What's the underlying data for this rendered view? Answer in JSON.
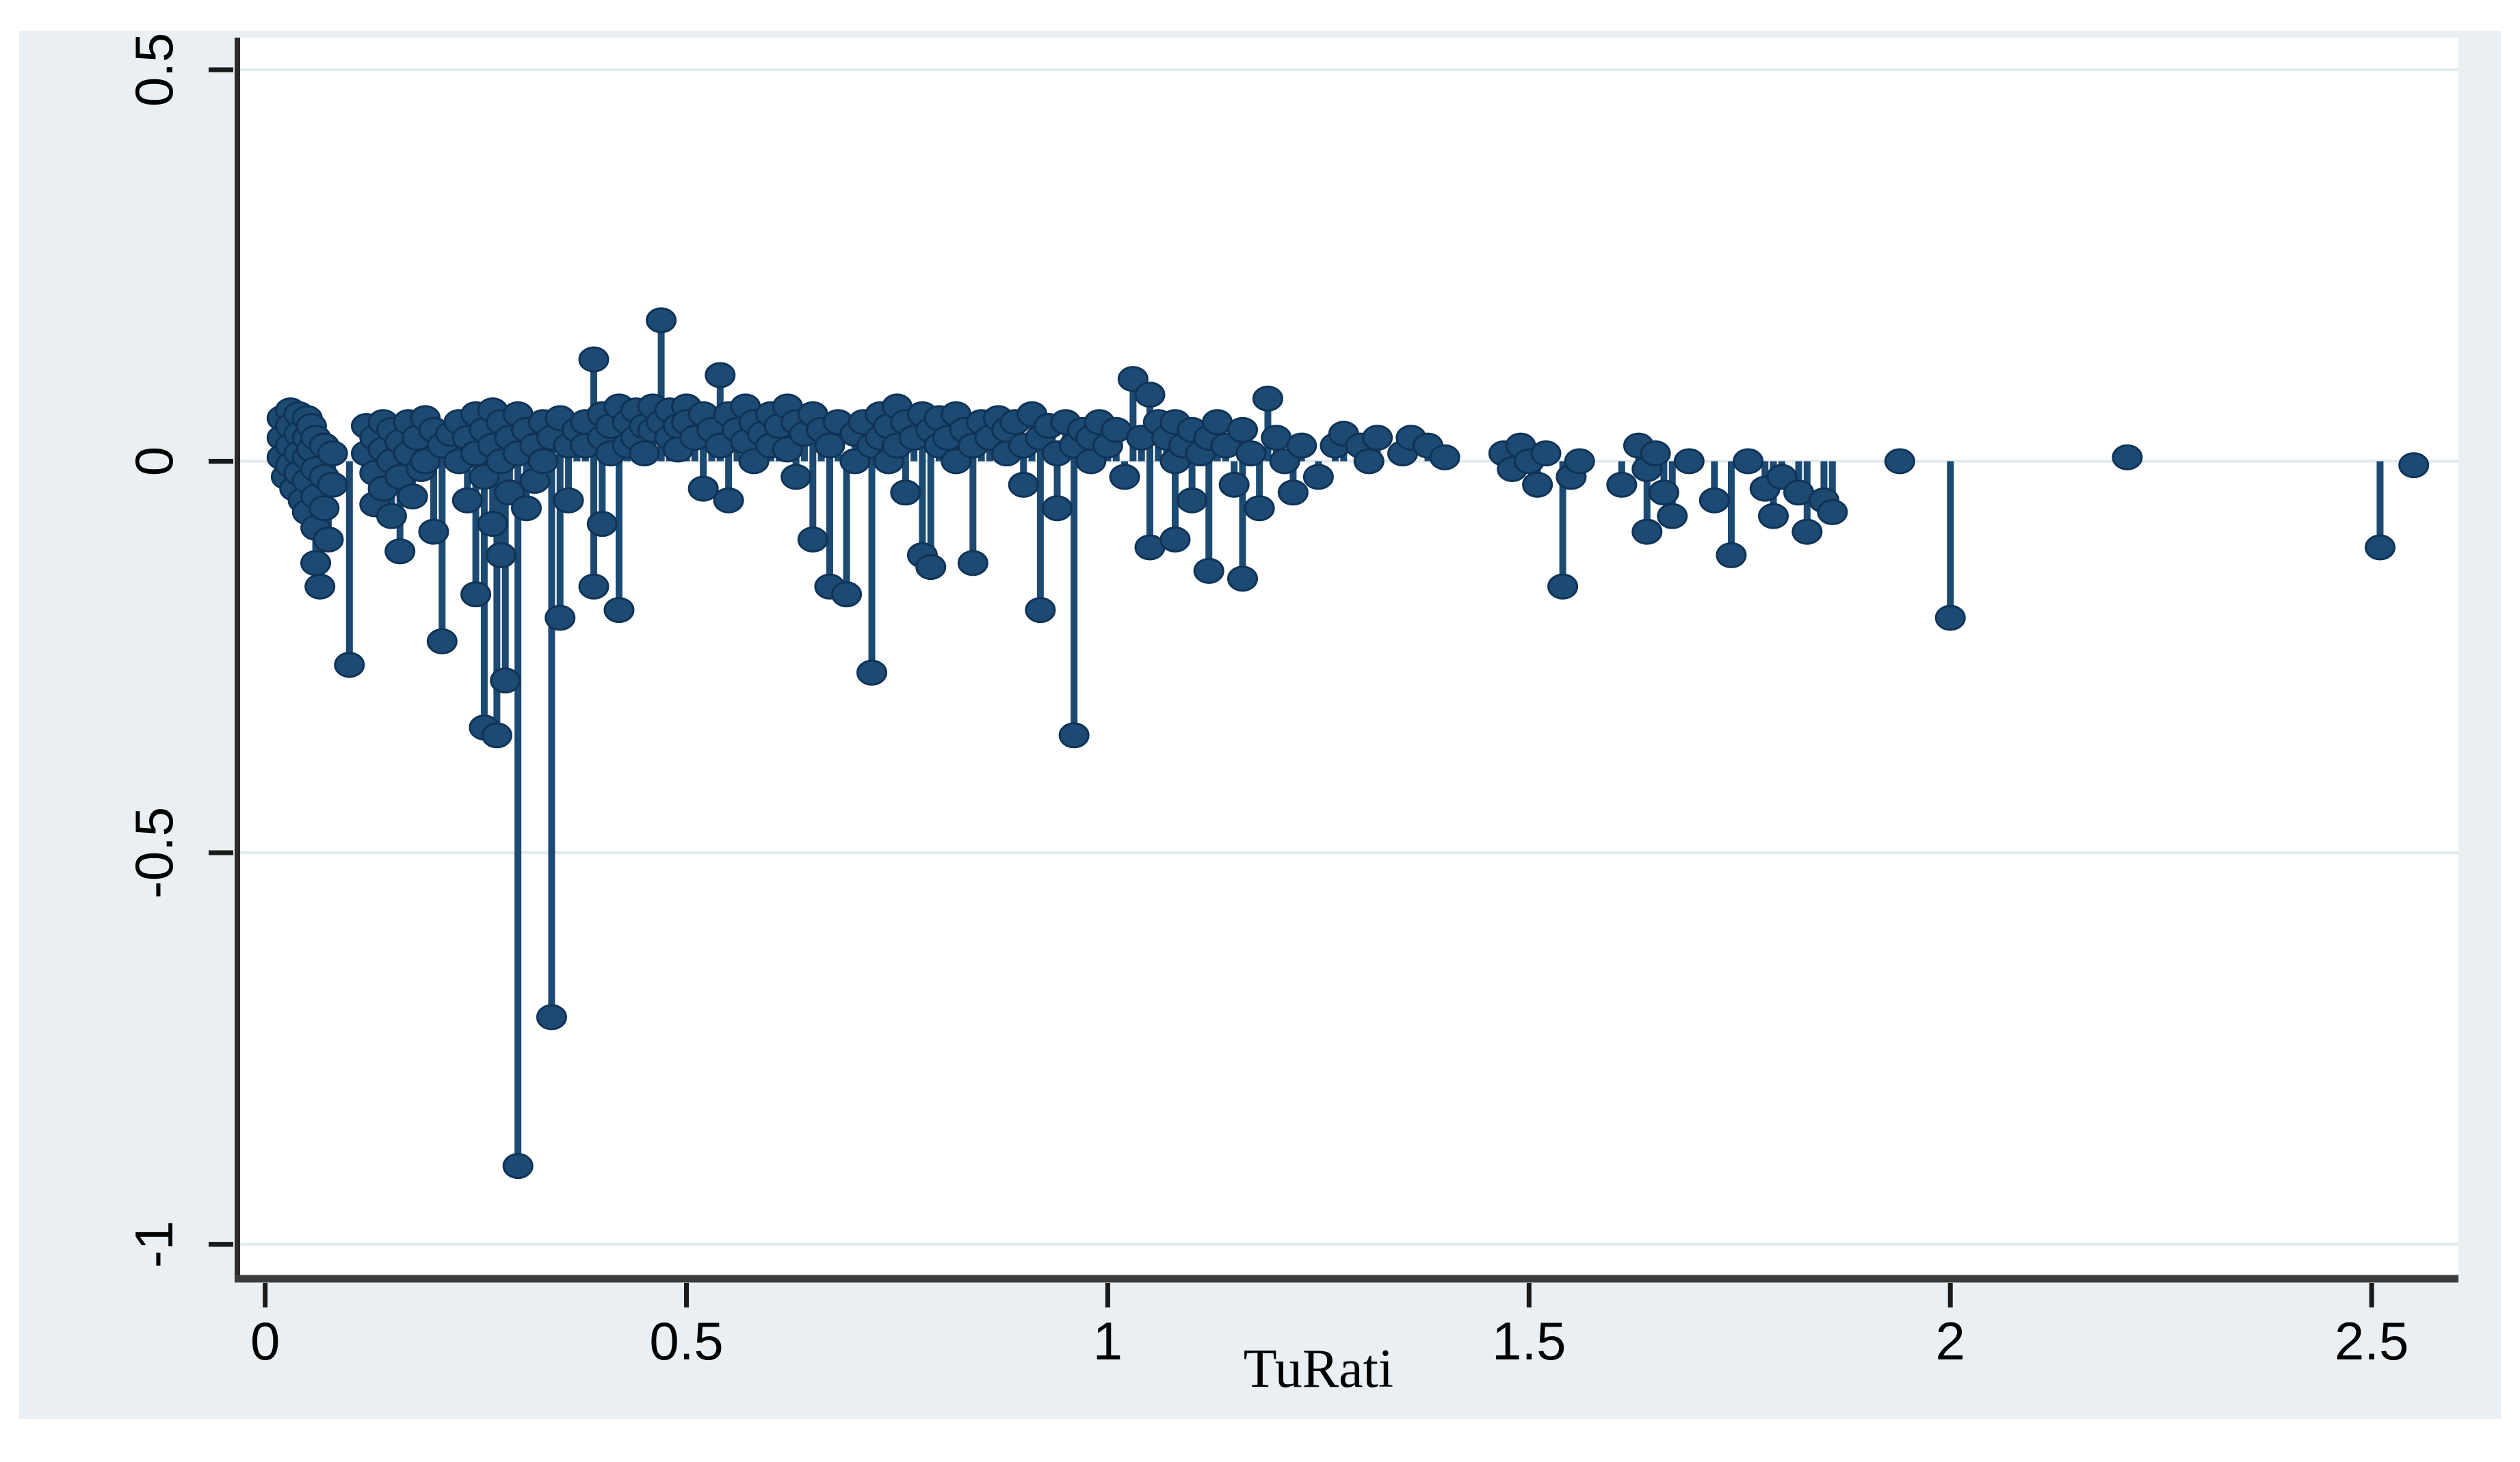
{
  "chart_data": {
    "type": "scatter",
    "subtype": "spike-stem",
    "title": "",
    "xlabel": "TuRati",
    "ylabel": "",
    "xlim": [
      -0.033,
      2.603
    ],
    "ylim": [
      -1.044,
      0.541
    ],
    "xticks": {
      "values": [
        0,
        0.5,
        1,
        1.5,
        2,
        2.5
      ],
      "labels": [
        "0",
        "0.5",
        "1",
        "1.5",
        "2",
        "2.5"
      ]
    },
    "yticks": {
      "values": [
        0.5,
        0,
        -0.5,
        -1
      ],
      "labels": [
        "0.5",
        "0",
        "-0.5",
        "-1"
      ]
    },
    "grid": "horizontal",
    "legend": "none",
    "baseline": 0,
    "marker": "filled-circle",
    "colors": {
      "point_fill": "#1c4a72",
      "point_stroke": "#0f3357",
      "spike": "#1c4a72",
      "gridline": "#dfe9ee",
      "axis": "#2b2b2b",
      "axis_bottom": "#3c3c3c",
      "tick": "#1a1a1a",
      "label_text": "#000000",
      "panel_bg": "#e9eff3",
      "plot_bg": "#ffffff",
      "page_bg": "#ffffff"
    },
    "points": [
      [
        0.02,
        0.055
      ],
      [
        0.02,
        0.03
      ],
      [
        0.02,
        0.005
      ],
      [
        0.025,
        -0.02
      ],
      [
        0.03,
        0.065
      ],
      [
        0.03,
        0.045
      ],
      [
        0.03,
        0.02
      ],
      [
        0.03,
        -0.005
      ],
      [
        0.035,
        -0.035
      ],
      [
        0.04,
        0.06
      ],
      [
        0.04,
        0.035
      ],
      [
        0.04,
        0.01
      ],
      [
        0.04,
        -0.015
      ],
      [
        0.045,
        -0.05
      ],
      [
        0.05,
        0.055
      ],
      [
        0.05,
        0.03
      ],
      [
        0.05,
        0.005
      ],
      [
        0.05,
        -0.025
      ],
      [
        0.05,
        -0.065
      ],
      [
        0.055,
        0.045
      ],
      [
        0.055,
        0.015
      ],
      [
        0.06,
        0.03
      ],
      [
        0.06,
        -0.01
      ],
      [
        0.06,
        -0.045
      ],
      [
        0.06,
        -0.085
      ],
      [
        0.06,
        -0.13
      ],
      [
        0.065,
        -0.16
      ],
      [
        0.07,
        0.02
      ],
      [
        0.07,
        -0.02
      ],
      [
        0.07,
        -0.06
      ],
      [
        0.075,
        -0.1
      ],
      [
        0.08,
        0.01
      ],
      [
        0.08,
        -0.03
      ],
      [
        0.1,
        -0.26
      ],
      [
        0.12,
        0.045
      ],
      [
        0.12,
        0.01
      ],
      [
        0.13,
        0.03
      ],
      [
        0.13,
        -0.015
      ],
      [
        0.13,
        -0.055
      ],
      [
        0.14,
        0.05
      ],
      [
        0.14,
        0.015
      ],
      [
        0.14,
        -0.035
      ],
      [
        0.15,
        0.04
      ],
      [
        0.15,
        0
      ],
      [
        0.15,
        -0.07
      ],
      [
        0.16,
        0.025
      ],
      [
        0.16,
        -0.02
      ],
      [
        0.16,
        -0.115
      ],
      [
        0.17,
        0.05
      ],
      [
        0.17,
        0.01
      ],
      [
        0.175,
        -0.045
      ],
      [
        0.18,
        0.03
      ],
      [
        0.185,
        -0.01
      ],
      [
        0.19,
        0.055
      ],
      [
        0.19,
        0
      ],
      [
        0.2,
        0.04
      ],
      [
        0.2,
        -0.09
      ],
      [
        0.21,
        0.02
      ],
      [
        0.21,
        -0.23
      ],
      [
        0.22,
        0.035
      ],
      [
        0.23,
        0.05
      ],
      [
        0.23,
        0
      ],
      [
        0.24,
        0.03
      ],
      [
        0.24,
        -0.05
      ],
      [
        0.25,
        0.06
      ],
      [
        0.25,
        0.01
      ],
      [
        0.25,
        -0.17
      ],
      [
        0.26,
        0.04
      ],
      [
        0.26,
        -0.02
      ],
      [
        0.26,
        -0.34
      ],
      [
        0.27,
        0.065
      ],
      [
        0.27,
        0.02
      ],
      [
        0.27,
        -0.08
      ],
      [
        0.275,
        -0.35
      ],
      [
        0.28,
        0.05
      ],
      [
        0.28,
        0
      ],
      [
        0.28,
        -0.12
      ],
      [
        0.285,
        -0.28
      ],
      [
        0.29,
        0.03
      ],
      [
        0.29,
        -0.04
      ],
      [
        0.3,
        0.06
      ],
      [
        0.3,
        0.01
      ],
      [
        0.3,
        -0.9
      ],
      [
        0.31,
        0.04
      ],
      [
        0.31,
        -0.06
      ],
      [
        0.32,
        0.02
      ],
      [
        0.32,
        -0.025
      ],
      [
        0.33,
        0.05
      ],
      [
        0.33,
        0
      ],
      [
        0.34,
        0.03
      ],
      [
        0.34,
        -0.71
      ],
      [
        0.35,
        0.055
      ],
      [
        0.35,
        -0.2
      ],
      [
        0.36,
        0.02
      ],
      [
        0.36,
        -0.05
      ],
      [
        0.37,
        0.04
      ],
      [
        0.38,
        0.05
      ],
      [
        0.38,
        0.02
      ],
      [
        0.39,
        0.13
      ],
      [
        0.39,
        -0.16
      ],
      [
        0.4,
        0.06
      ],
      [
        0.4,
        0.03
      ],
      [
        0.4,
        -0.08
      ],
      [
        0.41,
        0.045
      ],
      [
        0.41,
        0.01
      ],
      [
        0.42,
        0.07
      ],
      [
        0.42,
        -0.19
      ],
      [
        0.43,
        0.05
      ],
      [
        0.43,
        0.02
      ],
      [
        0.44,
        0.065
      ],
      [
        0.44,
        0.03
      ],
      [
        0.45,
        0.045
      ],
      [
        0.45,
        0.01
      ],
      [
        0.46,
        0.07
      ],
      [
        0.46,
        0.04
      ],
      [
        0.47,
        0.18
      ],
      [
        0.47,
        0.05
      ],
      [
        0.48,
        0.03
      ],
      [
        0.48,
        0.065
      ],
      [
        0.49,
        0.045
      ],
      [
        0.49,
        0.015
      ],
      [
        0.5,
        0.07
      ],
      [
        0.5,
        0.05
      ],
      [
        0.51,
        0.03
      ],
      [
        0.52,
        0.06
      ],
      [
        0.52,
        -0.035
      ],
      [
        0.53,
        0.04
      ],
      [
        0.54,
        0.11
      ],
      [
        0.54,
        0.02
      ],
      [
        0.55,
        0.06
      ],
      [
        0.55,
        -0.05
      ],
      [
        0.56,
        0.04
      ],
      [
        0.57,
        0.07
      ],
      [
        0.57,
        0.025
      ],
      [
        0.58,
        0.05
      ],
      [
        0.58,
        0
      ],
      [
        0.59,
        0.035
      ],
      [
        0.6,
        0.06
      ],
      [
        0.6,
        0.02
      ],
      [
        0.61,
        0.045
      ],
      [
        0.62,
        0.07
      ],
      [
        0.62,
        0.015
      ],
      [
        0.63,
        0.05
      ],
      [
        0.63,
        -0.02
      ],
      [
        0.64,
        0.035
      ],
      [
        0.65,
        0.06
      ],
      [
        0.65,
        -0.1
      ],
      [
        0.66,
        0.04
      ],
      [
        0.67,
        0.02
      ],
      [
        0.67,
        -0.16
      ],
      [
        0.68,
        0.05
      ],
      [
        0.69,
        -0.17
      ],
      [
        0.7,
        0.035
      ],
      [
        0.7,
        0
      ],
      [
        0.71,
        0.05
      ],
      [
        0.72,
        0.02
      ],
      [
        0.72,
        -0.27
      ],
      [
        0.73,
        0.06
      ],
      [
        0.73,
        0.03
      ],
      [
        0.74,
        0.045
      ],
      [
        0.74,
        0
      ],
      [
        0.75,
        0.07
      ],
      [
        0.75,
        0.02
      ],
      [
        0.76,
        0.05
      ],
      [
        0.76,
        -0.04
      ],
      [
        0.77,
        0.03
      ],
      [
        0.78,
        0.06
      ],
      [
        0.78,
        -0.12
      ],
      [
        0.79,
        0.04
      ],
      [
        0.79,
        -0.135
      ],
      [
        0.8,
        0.02
      ],
      [
        0.8,
        0.055
      ],
      [
        0.81,
        0.03
      ],
      [
        0.82,
        0.06
      ],
      [
        0.82,
        0
      ],
      [
        0.83,
        0.04
      ],
      [
        0.84,
        0.02
      ],
      [
        0.84,
        -0.13
      ],
      [
        0.85,
        0.05
      ],
      [
        0.86,
        0.03
      ],
      [
        0.87,
        0.055
      ],
      [
        0.88,
        0.04
      ],
      [
        0.88,
        0.01
      ],
      [
        0.89,
        0.05
      ],
      [
        0.9,
        0.02
      ],
      [
        0.9,
        -0.03
      ],
      [
        0.91,
        0.06
      ],
      [
        0.92,
        0.03
      ],
      [
        0.92,
        -0.19
      ],
      [
        0.93,
        0.045
      ],
      [
        0.94,
        0.01
      ],
      [
        0.94,
        -0.06
      ],
      [
        0.95,
        0.05
      ],
      [
        0.96,
        0.02
      ],
      [
        0.96,
        -0.35
      ],
      [
        0.97,
        0.04
      ],
      [
        0.98,
        0
      ],
      [
        0.98,
        0.03
      ],
      [
        0.99,
        0.05
      ],
      [
        1,
        0.02
      ],
      [
        1.01,
        0.04
      ],
      [
        1.02,
        -0.02
      ],
      [
        1.03,
        0.105
      ],
      [
        1.04,
        0.03
      ],
      [
        1.05,
        0.085
      ],
      [
        1.05,
        -0.11
      ],
      [
        1.06,
        0.05
      ],
      [
        1.07,
        0.03
      ],
      [
        1.08,
        0.05
      ],
      [
        1.08,
        0
      ],
      [
        1.08,
        -0.1
      ],
      [
        1.09,
        0.02
      ],
      [
        1.1,
        0.04
      ],
      [
        1.1,
        -0.05
      ],
      [
        1.11,
        0.01
      ],
      [
        1.12,
        0.03
      ],
      [
        1.12,
        -0.14
      ],
      [
        1.13,
        0.05
      ],
      [
        1.14,
        0.02
      ],
      [
        1.15,
        -0.03
      ],
      [
        1.16,
        0.04
      ],
      [
        1.16,
        -0.15
      ],
      [
        1.17,
        0.01
      ],
      [
        1.18,
        -0.06
      ],
      [
        1.19,
        0.08
      ],
      [
        1.2,
        0.03
      ],
      [
        1.21,
        0
      ],
      [
        1.22,
        -0.04
      ],
      [
        1.23,
        0.02
      ],
      [
        1.25,
        -0.02
      ],
      [
        1.27,
        0.02
      ],
      [
        1.28,
        0.035
      ],
      [
        1.3,
        0.02
      ],
      [
        1.31,
        0
      ],
      [
        1.32,
        0.03
      ],
      [
        1.35,
        0.01
      ],
      [
        1.36,
        0.03
      ],
      [
        1.38,
        0.02
      ],
      [
        1.4,
        0.005
      ],
      [
        1.47,
        0.01
      ],
      [
        1.48,
        -0.01
      ],
      [
        1.49,
        0.02
      ],
      [
        1.5,
        0
      ],
      [
        1.51,
        -0.03
      ],
      [
        1.52,
        0.01
      ],
      [
        1.54,
        -0.16
      ],
      [
        1.55,
        -0.02
      ],
      [
        1.56,
        0
      ],
      [
        1.61,
        -0.03
      ],
      [
        1.63,
        0.02
      ],
      [
        1.64,
        -0.01
      ],
      [
        1.64,
        -0.09
      ],
      [
        1.65,
        0.01
      ],
      [
        1.66,
        -0.04
      ],
      [
        1.67,
        -0.07
      ],
      [
        1.69,
        0
      ],
      [
        1.72,
        -0.05
      ],
      [
        1.74,
        -0.12
      ],
      [
        1.76,
        0
      ],
      [
        1.78,
        -0.035
      ],
      [
        1.79,
        -0.07
      ],
      [
        1.8,
        -0.02
      ],
      [
        1.82,
        -0.04
      ],
      [
        1.83,
        -0.09
      ],
      [
        1.85,
        -0.05
      ],
      [
        1.86,
        -0.065
      ],
      [
        1.94,
        0
      ],
      [
        2,
        -0.2
      ],
      [
        2.21,
        0.005
      ],
      [
        2.51,
        -0.11
      ],
      [
        2.55,
        -0.005
      ]
    ]
  }
}
